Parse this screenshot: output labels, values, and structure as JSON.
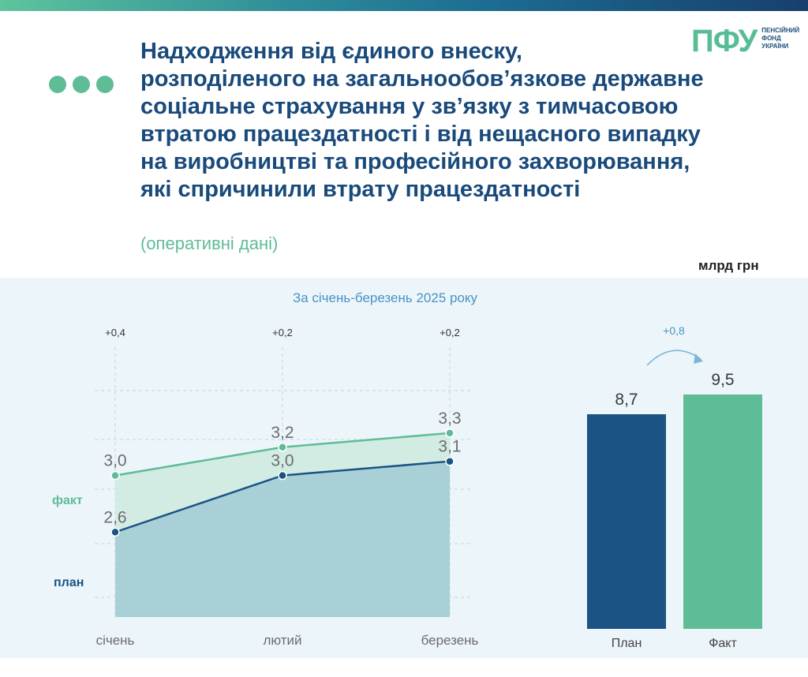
{
  "header": {
    "title_lines": [
      "Надходження від єдиного внеску,",
      "розподіленого на загальнообов’язкове державне",
      "соціальне страхування у зв’язку з тимчасовою",
      "втратою працездатності і від нещасного випадку",
      "на виробництві та професійного захворювання,",
      "які спричинили втрату працездатності"
    ],
    "subtitle": "(оперативні дані)",
    "unit": "млрд грн",
    "period": "За січень-березень 2025 року"
  },
  "logo": {
    "mark": "ПФУ",
    "text_lines": [
      "ПЕНСІЙНИЙ",
      "ФОНД",
      "УКРАЇНИ"
    ]
  },
  "colors": {
    "navy": "#1a5384",
    "green": "#5ebc96",
    "title": "#194a7b",
    "accent_blue": "#4a93c4"
  },
  "chart_data": [
    {
      "type": "area",
      "categories": [
        "січень",
        "лютий",
        "березень"
      ],
      "series": [
        {
          "name": "факт",
          "values": [
            3.0,
            3.2,
            3.3
          ],
          "labels": [
            "3,0",
            "3,2",
            "3,3"
          ],
          "color": "#5ebc96"
        },
        {
          "name": "план",
          "values": [
            2.6,
            3.0,
            3.1
          ],
          "labels": [
            "2,6",
            "3,0",
            "3,1"
          ],
          "color": "#1a5384"
        }
      ],
      "differences": [
        "+0,4",
        "+0,2",
        "+0,2"
      ],
      "ylim": [
        2.0,
        3.6
      ],
      "grid": true
    },
    {
      "type": "bar",
      "categories": [
        "План",
        "Факт"
      ],
      "values": [
        8.7,
        9.5
      ],
      "labels": [
        "8,7",
        "9,5"
      ],
      "colors": [
        "#1a5384",
        "#5ebc96"
      ],
      "difference": "+0,8",
      "ylim": [
        0,
        12
      ]
    }
  ]
}
